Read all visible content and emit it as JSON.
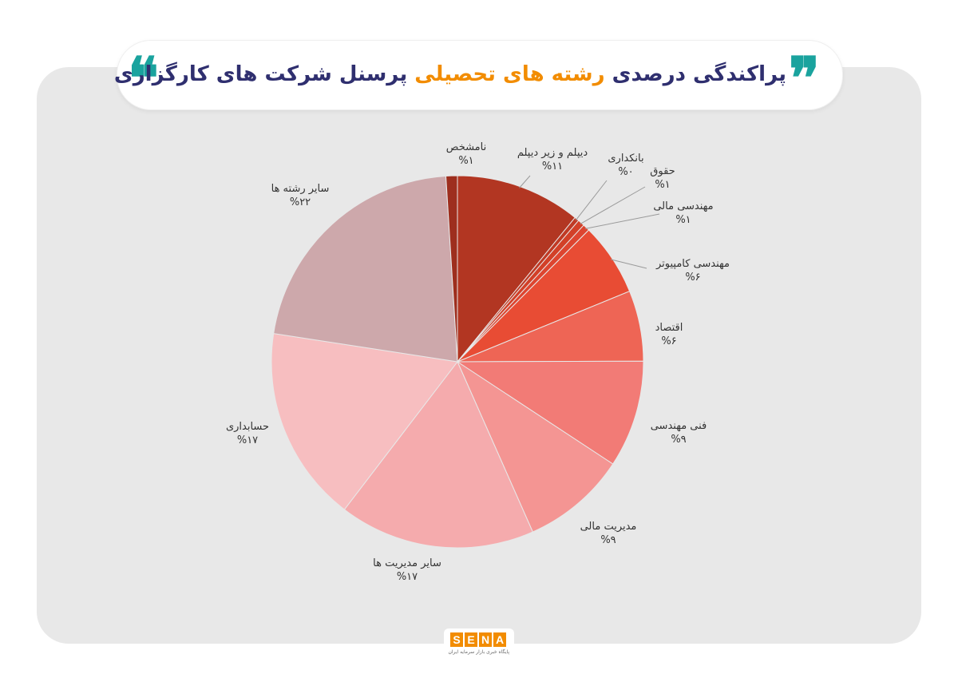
{
  "header": {
    "title_part1": "پراکندگی درصدی",
    "title_highlight": "رشته های تحصیلی",
    "title_part2": "پرسنل شرکت های کارگزاری",
    "quote_left": "❝",
    "quote_right": "❞",
    "highlight_color": "#f28c00",
    "title_color": "#2f2f6f",
    "quote_color": "#1aa39e"
  },
  "chart_data": {
    "type": "pie",
    "title": "پراکندگی درصدی رشته های تحصیلی پرسنل شرکت های کارگزاری",
    "start": "top",
    "direction": "clockwise",
    "slices": [
      {
        "label": "دیپلم و زیر دیپلم",
        "pct_label": "%۱۱",
        "value": 11,
        "color": "#b23622"
      },
      {
        "label": "بانکداری",
        "pct_label": "%۰",
        "value": 0.4,
        "color": "#c03a25"
      },
      {
        "label": "حقوق",
        "pct_label": "%۱",
        "value": 0.6,
        "color": "#d24028"
      },
      {
        "label": "مهندسی مالی",
        "pct_label": "%۱",
        "value": 0.6,
        "color": "#dd4530"
      },
      {
        "label": "مهندسی کامپیوتر",
        "pct_label": "%۶",
        "value": 6.4,
        "color": "#e84c34"
      },
      {
        "label": "اقتصاد",
        "pct_label": "%۶",
        "value": 6.2,
        "color": "#ee6555"
      },
      {
        "label": "فنی مهندسی",
        "pct_label": "%۹",
        "value": 9.4,
        "color": "#f27b76"
      },
      {
        "label": "مدیریت مالی",
        "pct_label": "%۹",
        "value": 9.2,
        "color": "#f49593"
      },
      {
        "label": "سایر مدیریت ها",
        "pct_label": "%۱۷",
        "value": 17.2,
        "color": "#f5abad"
      },
      {
        "label": "حسابداری",
        "pct_label": "%۱۷",
        "value": 17.2,
        "color": "#f7bec0"
      },
      {
        "label": "سایر رشته ها",
        "pct_label": "%۲۲",
        "value": 21.8,
        "color": "#cda8ab"
      },
      {
        "label": "نامشخص",
        "pct_label": "%۱",
        "value": 1.0,
        "color": "#9e2e1e"
      }
    ]
  },
  "footer": {
    "logo_letters": [
      "S",
      "E",
      "N",
      "A"
    ],
    "logo_subtitle": "پایگاه خبری بازار سرمایه ایران",
    "logo_color": "#f28c00"
  }
}
